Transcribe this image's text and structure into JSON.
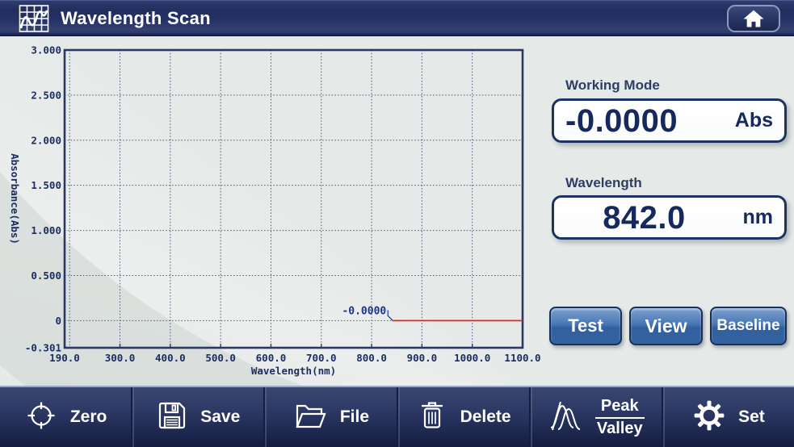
{
  "header": {
    "title": "Wavelength Scan",
    "icon": "scan-chart-icon",
    "home_icon": "home-icon"
  },
  "chart_data": {
    "type": "line",
    "title": "",
    "xlabel": "Wavelength(nm)",
    "ylabel": "Absorbance(Abs)",
    "xlim": [
      190,
      1100
    ],
    "ylim": [
      -0.301,
      3.0
    ],
    "xtick_values": [
      190,
      300,
      400,
      500,
      600,
      700,
      800,
      900,
      1000,
      1100
    ],
    "xtick_labels": [
      "190.0",
      "300.0",
      "400.0",
      "500.0",
      "600.0",
      "700.0",
      "800.0",
      "900.0",
      "1000.0",
      "1100.0"
    ],
    "ytick_values": [
      3.0,
      2.5,
      2.0,
      1.5,
      1.0,
      0.5,
      0,
      -0.301
    ],
    "ytick_labels": [
      "3.000",
      "2.500",
      "2.000",
      "1.500",
      "1.000",
      "0.500",
      "0",
      "-0.301"
    ],
    "grid": true,
    "grid_x": [
      200,
      300,
      400,
      500,
      600,
      700,
      800,
      900,
      1000
    ],
    "grid_y": [
      2.5,
      2.0,
      1.5,
      1.0,
      0.5,
      0
    ],
    "legend": false,
    "series": [
      {
        "name": "scan-trace",
        "color": "#e02822",
        "points": [
          [
            842,
            0.0
          ],
          [
            1100,
            0.0
          ]
        ]
      }
    ],
    "annotation": {
      "text": "-0.0000",
      "x": 842,
      "y": 0.0
    }
  },
  "readouts": {
    "working_mode": {
      "label": "Working Mode",
      "value": "-0.0000",
      "unit": "Abs"
    },
    "wavelength": {
      "label": "Wavelength",
      "value": "842.0",
      "unit": "nm"
    }
  },
  "action_buttons": [
    {
      "label": "Test"
    },
    {
      "label": "View"
    },
    {
      "label": "Baseline"
    }
  ],
  "toolbar": [
    {
      "icon": "target-icon",
      "label": "Zero"
    },
    {
      "icon": "floppy-icon",
      "label": "Save"
    },
    {
      "icon": "folder-icon",
      "label": "File"
    },
    {
      "icon": "trash-icon",
      "label": "Delete"
    },
    {
      "icon": "peaks-icon",
      "label": "Peak",
      "label2": "Valley"
    },
    {
      "icon": "gear-icon",
      "label": "Set"
    }
  ],
  "colors": {
    "navy_bar": "#253266",
    "accent_border": "#1c3262",
    "button_blue": "#35639f",
    "trace_red": "#e02822",
    "chart_text": "#1b2d61",
    "background": "#e5e9e7"
  }
}
